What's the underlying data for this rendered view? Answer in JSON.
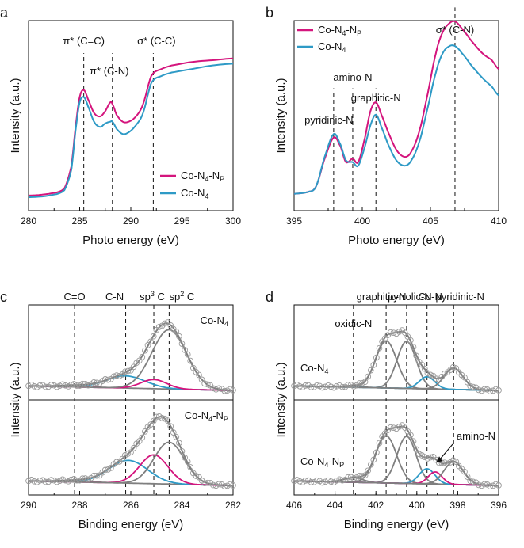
{
  "chart_data": [
    {
      "panel": "a",
      "type": "line",
      "xlabel": "Photo energy (eV)",
      "ylabel": "Intensity (a.u.)",
      "xlim": [
        280,
        300
      ],
      "xticks": [
        "280",
        "285",
        "290",
        "295",
        "300"
      ],
      "legend": {
        "position": "bottom-right"
      },
      "vlines": [
        {
          "x": 285.4,
          "label": "π* (C=C)"
        },
        {
          "x": 288.2,
          "label": "π* (C-N)",
          "color": "#d4157d"
        },
        {
          "x": 292.2,
          "label": "σ* (C-C)"
        }
      ],
      "series": [
        {
          "name": "Co-N₄-Nₚ",
          "color": "#d4157d",
          "x": [
            280,
            282,
            283.5,
            284.2,
            284.6,
            285,
            285.4,
            285.8,
            286.4,
            287,
            287.5,
            288,
            288.2,
            288.6,
            289.2,
            289.8,
            290.5,
            291.2,
            292,
            293,
            294,
            296,
            298,
            300
          ],
          "y": [
            0.05,
            0.06,
            0.09,
            0.22,
            0.44,
            0.61,
            0.65,
            0.6,
            0.52,
            0.5,
            0.53,
            0.58,
            0.57,
            0.51,
            0.47,
            0.47,
            0.5,
            0.57,
            0.73,
            0.77,
            0.79,
            0.81,
            0.82,
            0.83
          ]
        },
        {
          "name": "Co-N₄",
          "color": "#2e9ac6",
          "x": [
            280,
            282,
            283.5,
            284.2,
            284.6,
            285,
            285.4,
            285.8,
            286.4,
            287,
            287.5,
            288,
            288.2,
            288.6,
            289.2,
            289.8,
            290.5,
            291.2,
            292,
            293,
            294,
            296,
            298,
            300
          ],
          "y": [
            0.04,
            0.05,
            0.08,
            0.2,
            0.42,
            0.58,
            0.61,
            0.56,
            0.47,
            0.44,
            0.46,
            0.47,
            0.47,
            0.43,
            0.4,
            0.41,
            0.45,
            0.52,
            0.69,
            0.73,
            0.75,
            0.77,
            0.79,
            0.8
          ]
        }
      ]
    },
    {
      "panel": "b",
      "type": "line",
      "xlabel": "Photo energy (eV)",
      "ylabel": "Intensity (a.u.)",
      "xlim": [
        395,
        410
      ],
      "xticks": [
        "395",
        "400",
        "405",
        "410"
      ],
      "legend": {
        "position": "top-left"
      },
      "vlines": [
        {
          "x": 397.9,
          "label": "pyridinic-N"
        },
        {
          "x": 399.3,
          "label": "amino-N",
          "color": "#d4157d"
        },
        {
          "x": 401.0,
          "label": "graphitic-N"
        },
        {
          "x": 406.8,
          "label": "σ* (C-N)"
        }
      ],
      "series": [
        {
          "name": "Co-N₄-Nₚ",
          "color": "#d4157d",
          "x": [
            395,
            396,
            396.6,
            397.2,
            397.9,
            398.4,
            398.8,
            399.3,
            399.7,
            400.2,
            400.6,
            401,
            401.4,
            401.9,
            402.5,
            403.1,
            403.6,
            404.2,
            404.8,
            405.4,
            405.9,
            406.4,
            406.8,
            407.3,
            408,
            408.8,
            409.5,
            410
          ],
          "y": [
            0.06,
            0.07,
            0.1,
            0.25,
            0.38,
            0.33,
            0.24,
            0.26,
            0.24,
            0.38,
            0.53,
            0.58,
            0.51,
            0.41,
            0.31,
            0.27,
            0.3,
            0.42,
            0.63,
            0.86,
            0.98,
            1.03,
            1.04,
            1.0,
            0.93,
            0.86,
            0.82,
            0.77
          ]
        },
        {
          "name": "Co-N₄",
          "color": "#2e9ac6",
          "x": [
            395,
            396,
            396.6,
            397.2,
            397.9,
            398.4,
            398.8,
            399.3,
            399.7,
            400.2,
            400.6,
            401,
            401.4,
            401.9,
            402.5,
            403.1,
            403.6,
            404.2,
            404.8,
            405.4,
            405.9,
            406.4,
            406.8,
            407.3,
            408,
            408.8,
            409.5,
            410
          ],
          "y": [
            0.06,
            0.07,
            0.1,
            0.26,
            0.4,
            0.34,
            0.25,
            0.24,
            0.22,
            0.33,
            0.45,
            0.51,
            0.44,
            0.34,
            0.25,
            0.22,
            0.25,
            0.36,
            0.55,
            0.75,
            0.86,
            0.9,
            0.9,
            0.86,
            0.79,
            0.72,
            0.67,
            0.62
          ]
        }
      ]
    },
    {
      "panel": "c",
      "type": "line",
      "xlabel": "Binding energy (eV)",
      "ylabel": "Intensity (a.u.)",
      "xlim": [
        290,
        282
      ],
      "xticks": [
        "290",
        "288",
        "286",
        "284",
        "282"
      ],
      "header_labels": [
        {
          "x": 288.2,
          "text": "C=O",
          "color": "#111"
        },
        {
          "x": 286.2,
          "text": "C-N",
          "color": "#2e9ac6"
        },
        {
          "x": 285.1,
          "text": "sp³ C",
          "color": "#d4157d"
        },
        {
          "x": 284.5,
          "text": "sp² C",
          "color": "#111"
        }
      ],
      "subplots": [
        {
          "label": "Co-N₄",
          "components": [
            {
              "name": "C=O",
              "center": 288.2,
              "height": 0.02,
              "width": 1.4,
              "color": "#7f7f7f"
            },
            {
              "name": "C-N",
              "center": 286.2,
              "height": 0.16,
              "width": 1.8,
              "color": "#2e9ac6"
            },
            {
              "name": "sp³ C",
              "center": 285.1,
              "height": 0.12,
              "width": 1.2,
              "color": "#d4157d"
            },
            {
              "name": "sp² C",
              "center": 284.5,
              "height": 0.78,
              "width": 1.6,
              "color": "#7f7f7f"
            }
          ]
        },
        {
          "label": "Co-N₄-Nₚ",
          "components": [
            {
              "name": "C=O",
              "center": 288.2,
              "height": 0.02,
              "width": 1.4,
              "color": "#7f7f7f"
            },
            {
              "name": "C-N",
              "center": 286.1,
              "height": 0.3,
              "width": 1.8,
              "color": "#2e9ac6"
            },
            {
              "name": "sp³ C",
              "center": 285.1,
              "height": 0.38,
              "width": 1.3,
              "color": "#d4157d"
            },
            {
              "name": "sp² C",
              "center": 284.5,
              "height": 0.55,
              "width": 1.4,
              "color": "#7f7f7f"
            }
          ]
        }
      ]
    },
    {
      "panel": "d",
      "type": "line",
      "xlabel": "Binding energy (eV)",
      "ylabel": "Intensity (a.u.)",
      "xlim": [
        406,
        396
      ],
      "xticks": [
        "406",
        "404",
        "402",
        "400",
        "398",
        "396"
      ],
      "header_labels": [
        {
          "x": 403.1,
          "text": "oxidic-N",
          "color": "#111"
        },
        {
          "x": 401.5,
          "text": "graphitic-N",
          "color": "#111"
        },
        {
          "x": 400.5,
          "text": "pyrrolic-N",
          "color": "#111"
        },
        {
          "x": 399.5,
          "text": "Co-N",
          "color": "#2e9ac6"
        },
        {
          "x": 398.2,
          "text": "pyridinic-N",
          "color": "#111"
        }
      ],
      "subplots": [
        {
          "label": "Co-N₄",
          "components": [
            {
              "name": "oxidic-N",
              "center": 403.1,
              "height": 0.02,
              "width": 1.0,
              "color": "#7f7f7f"
            },
            {
              "name": "graphitic-N",
              "center": 401.5,
              "height": 0.62,
              "width": 1.2,
              "color": "#7f7f7f"
            },
            {
              "name": "pyrrolic-N",
              "center": 400.5,
              "height": 0.62,
              "width": 1.1,
              "color": "#7f7f7f"
            },
            {
              "name": "Co-N",
              "center": 399.5,
              "height": 0.16,
              "width": 0.9,
              "color": "#2e9ac6"
            },
            {
              "name": "pyridinic-N",
              "center": 398.2,
              "height": 0.28,
              "width": 1.1,
              "color": "#7f7f7f"
            }
          ]
        },
        {
          "label": "Co-N₄-Nₚ",
          "annotation": "amino-N",
          "components": [
            {
              "name": "oxidic-N",
              "center": 403.1,
              "height": 0.06,
              "width": 1.1,
              "color": "#7f7f7f"
            },
            {
              "name": "graphitic-N",
              "center": 401.5,
              "height": 0.62,
              "width": 1.2,
              "color": "#7f7f7f"
            },
            {
              "name": "pyrrolic-N",
              "center": 400.5,
              "height": 0.62,
              "width": 1.1,
              "color": "#7f7f7f"
            },
            {
              "name": "Co-N",
              "center": 399.5,
              "height": 0.2,
              "width": 0.9,
              "color": "#2e9ac6"
            },
            {
              "name": "amino-N",
              "center": 399.1,
              "height": 0.16,
              "width": 0.8,
              "color": "#d4157d"
            },
            {
              "name": "pyridinic-N",
              "center": 398.2,
              "height": 0.3,
              "width": 1.1,
              "color": "#7f7f7f"
            }
          ]
        }
      ]
    }
  ]
}
